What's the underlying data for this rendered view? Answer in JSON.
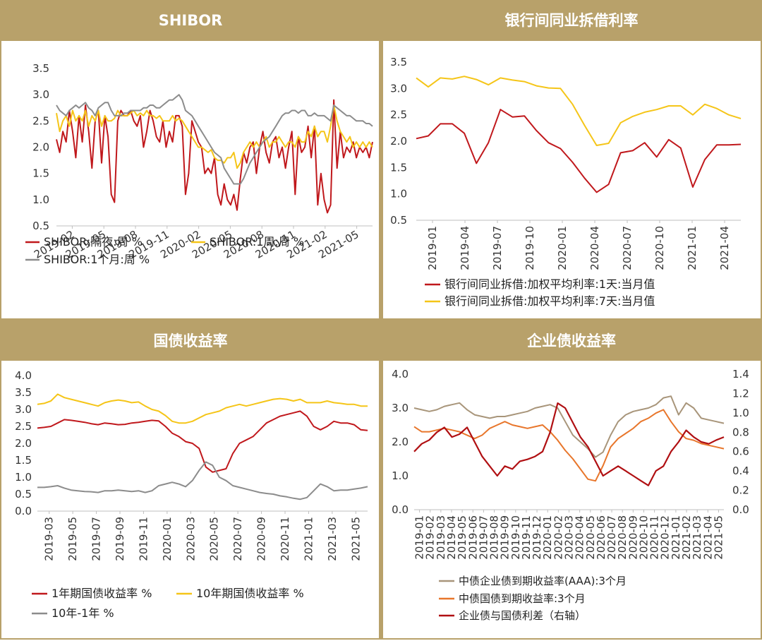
{
  "panels": [
    {
      "title": "SHIBOR",
      "chart_data": {
        "type": "line",
        "x_ticks": [
          "2019-02",
          "2019-05",
          "2019-08",
          "2019-11",
          "2020-02",
          "2020-05",
          "2020-08",
          "2020-11",
          "2021-02",
          "2021-05"
        ],
        "y_ticks": [
          "0.5",
          "1.0",
          "1.5",
          "2.0",
          "2.5",
          "3.0",
          "3.5"
        ],
        "ylim": [
          0.5,
          3.5
        ],
        "grid": false,
        "legend_position": "bottom",
        "series": [
          {
            "name": "SHIBOR:隔夜:周 %",
            "color": "#c0181c",
            "values": [
              2.15,
              1.9,
              2.3,
              2.1,
              2.7,
              2.3,
              1.8,
              2.6,
              2.1,
              2.8,
              2.3,
              1.6,
              2.5,
              2.7,
              1.7,
              2.6,
              2.2,
              1.1,
              0.95,
              2.5,
              2.7,
              2.6,
              2.6,
              2.7,
              2.5,
              2.4,
              2.6,
              2.0,
              2.3,
              2.7,
              2.5,
              2.2,
              2.1,
              2.5,
              2.0,
              2.3,
              2.1,
              2.6,
              2.6,
              2.4,
              1.1,
              1.5,
              2.5,
              2.3,
              2.1,
              2.0,
              1.5,
              1.6,
              1.5,
              1.8,
              1.1,
              0.9,
              1.3,
              1.0,
              0.9,
              1.1,
              0.8,
              1.4,
              1.9,
              1.7,
              2.0,
              2.1,
              1.5,
              2.0,
              2.3,
              1.9,
              1.7,
              2.1,
              2.2,
              1.8,
              2.0,
              1.6,
              2.0,
              2.3,
              1.1,
              2.2,
              1.9,
              2.0,
              2.4,
              1.8,
              2.4,
              0.9,
              1.5,
              1.0,
              0.75,
              0.9,
              2.9,
              1.6,
              2.3,
              1.8,
              2.0,
              1.9,
              2.1,
              1.8,
              2.0,
              1.9,
              2.0,
              1.8,
              2.1
            ]
          },
          {
            "name": "SHIBOR:1周:周 %",
            "color": "#f5c518",
            "values": [
              2.65,
              2.3,
              2.5,
              2.6,
              2.4,
              2.7,
              2.5,
              2.6,
              2.5,
              2.7,
              2.4,
              2.6,
              2.5,
              2.7,
              2.4,
              2.6,
              2.5,
              2.5,
              2.55,
              2.7,
              2.6,
              2.6,
              2.6,
              2.65,
              2.7,
              2.6,
              2.65,
              2.6,
              2.7,
              2.6,
              2.6,
              2.55,
              2.6,
              2.5,
              2.5,
              2.5,
              2.6,
              2.5,
              2.55,
              2.5,
              2.4,
              2.3,
              2.2,
              2.1,
              2.0,
              2.0,
              1.95,
              1.9,
              1.95,
              1.8,
              1.75,
              1.75,
              1.7,
              1.8,
              1.8,
              1.9,
              1.6,
              1.7,
              1.9,
              2.0,
              2.1,
              2.0,
              2.1,
              2.0,
              2.1,
              2.2,
              2.0,
              2.1,
              2.1,
              2.2,
              2.1,
              2.0,
              2.1,
              2.1,
              2.0,
              2.2,
              2.1,
              2.1,
              2.3,
              2.2,
              2.4,
              2.2,
              2.3,
              2.3,
              2.1,
              2.4,
              2.8,
              2.5,
              2.3,
              2.2,
              2.1,
              2.2,
              2.0,
              2.1,
              2.0,
              2.1,
              2.0,
              2.1,
              2.0
            ]
          },
          {
            "name": "SHIBOR:1个月:周 %",
            "color": "#8c8c8c",
            "values": [
              2.8,
              2.7,
              2.65,
              2.6,
              2.7,
              2.75,
              2.8,
              2.75,
              2.8,
              2.85,
              2.75,
              2.7,
              2.6,
              2.75,
              2.8,
              2.85,
              2.85,
              2.7,
              2.6,
              2.6,
              2.6,
              2.65,
              2.65,
              2.7,
              2.7,
              2.7,
              2.7,
              2.75,
              2.75,
              2.8,
              2.8,
              2.75,
              2.75,
              2.8,
              2.85,
              2.9,
              2.9,
              2.95,
              3.0,
              2.9,
              2.7,
              2.65,
              2.6,
              2.5,
              2.4,
              2.3,
              2.2,
              2.1,
              2.0,
              1.9,
              1.85,
              1.8,
              1.6,
              1.5,
              1.4,
              1.3,
              1.3,
              1.3,
              1.4,
              1.55,
              1.7,
              1.8,
              1.9,
              2.0,
              2.1,
              2.15,
              2.2,
              2.3,
              2.4,
              2.5,
              2.6,
              2.65,
              2.65,
              2.7,
              2.7,
              2.65,
              2.7,
              2.7,
              2.6,
              2.6,
              2.65,
              2.6,
              2.6,
              2.6,
              2.55,
              2.5,
              2.8,
              2.75,
              2.7,
              2.65,
              2.6,
              2.6,
              2.55,
              2.5,
              2.5,
              2.5,
              2.45,
              2.45,
              2.4
            ]
          }
        ]
      }
    },
    {
      "title": "银行间同业拆借利率",
      "chart_data": {
        "type": "line",
        "x_ticks": [
          "2019-01",
          "2019-04",
          "2019-07",
          "2019-10",
          "2020-01",
          "2020-04",
          "2020-07",
          "2020-10",
          "2021-01",
          "2021-04"
        ],
        "y_ticks": [
          "0.5",
          "1.0",
          "1.5",
          "2.0",
          "2.5",
          "3.0",
          "3.5"
        ],
        "ylim": [
          0.5,
          3.5
        ],
        "grid": false,
        "legend_position": "bottom",
        "series": [
          {
            "name": "银行间同业拆借:加权平均利率:1天:当月值",
            "color": "#c0181c",
            "values": [
              2.05,
              2.1,
              2.33,
              2.33,
              2.15,
              1.58,
              1.97,
              2.6,
              2.46,
              2.48,
              2.2,
              1.97,
              1.86,
              1.6,
              1.3,
              1.03,
              1.18,
              1.78,
              1.82,
              1.97,
              1.7,
              2.03,
              1.87,
              1.13,
              1.65,
              1.93,
              1.93,
              1.94
            ]
          },
          {
            "name": "银行间同业拆借:加权平均利率:7天:当月值",
            "color": "#f5c518",
            "values": [
              3.2,
              3.03,
              3.2,
              3.18,
              3.23,
              3.17,
              3.07,
              3.2,
              3.16,
              3.13,
              3.05,
              3.01,
              3.0,
              2.7,
              2.3,
              1.92,
              1.96,
              2.35,
              2.47,
              2.55,
              2.6,
              2.67,
              2.67,
              2.5,
              2.7,
              2.62,
              2.5,
              2.43
            ]
          }
        ]
      }
    },
    {
      "title": "国债收益率",
      "chart_data": {
        "type": "line",
        "x_ticks": [
          "2019-03",
          "2019-05",
          "2019-07",
          "2019-09",
          "2019-11",
          "2020-01",
          "2020-03",
          "2020-05",
          "2020-07",
          "2020-09",
          "2020-11",
          "2021-01",
          "2021-03",
          "2021-05"
        ],
        "y_ticks": [
          "0.0",
          "0.5",
          "1.0",
          "1.5",
          "2.0",
          "2.5",
          "3.0",
          "3.5",
          "4.0"
        ],
        "ylim": [
          0.0,
          4.0
        ],
        "grid": false,
        "legend_position": "bottom",
        "series": [
          {
            "name": "1年期国债收益率 %",
            "color": "#c0181c",
            "values": [
              2.45,
              2.47,
              2.5,
              2.6,
              2.7,
              2.68,
              2.65,
              2.62,
              2.58,
              2.55,
              2.6,
              2.58,
              2.55,
              2.56,
              2.6,
              2.62,
              2.65,
              2.68,
              2.66,
              2.5,
              2.3,
              2.2,
              2.05,
              2.0,
              1.85,
              1.3,
              1.15,
              1.2,
              1.25,
              1.7,
              2.0,
              2.1,
              2.2,
              2.4,
              2.6,
              2.7,
              2.8,
              2.85,
              2.9,
              2.95,
              2.8,
              2.5,
              2.4,
              2.5,
              2.65,
              2.6,
              2.6,
              2.55,
              2.4,
              2.38
            ]
          },
          {
            "name": "10年期国债收益率 %",
            "color": "#f5c518",
            "values": [
              3.15,
              3.18,
              3.25,
              3.45,
              3.35,
              3.3,
              3.25,
              3.2,
              3.15,
              3.1,
              3.2,
              3.25,
              3.28,
              3.25,
              3.2,
              3.22,
              3.1,
              3.0,
              2.95,
              2.82,
              2.65,
              2.6,
              2.6,
              2.65,
              2.75,
              2.85,
              2.9,
              2.95,
              3.05,
              3.1,
              3.15,
              3.1,
              3.15,
              3.2,
              3.25,
              3.3,
              3.32,
              3.3,
              3.25,
              3.3,
              3.2,
              3.2,
              3.2,
              3.25,
              3.2,
              3.18,
              3.15,
              3.15,
              3.1,
              3.1
            ]
          },
          {
            "name": "10年-1年 %",
            "color": "#8c8c8c",
            "values": [
              0.7,
              0.7,
              0.72,
              0.75,
              0.68,
              0.62,
              0.6,
              0.58,
              0.57,
              0.55,
              0.6,
              0.6,
              0.62,
              0.6,
              0.58,
              0.6,
              0.55,
              0.6,
              0.75,
              0.8,
              0.85,
              0.8,
              0.72,
              0.9,
              1.2,
              1.45,
              1.35,
              1.0,
              0.9,
              0.75,
              0.7,
              0.65,
              0.6,
              0.55,
              0.52,
              0.5,
              0.45,
              0.42,
              0.38,
              0.35,
              0.4,
              0.6,
              0.8,
              0.72,
              0.6,
              0.62,
              0.62,
              0.65,
              0.68,
              0.72
            ]
          }
        ]
      }
    },
    {
      "title": "企业债收益率",
      "chart_data": {
        "type": "line",
        "x_ticks": [
          "2019-01",
          "2019-02",
          "2019-03",
          "2019-04",
          "2019-05",
          "2019-06",
          "2019-07",
          "2019-08",
          "2019-09",
          "2019-10",
          "2019-11",
          "2019-12",
          "2020-01",
          "2020-02",
          "2020-03",
          "2020-04",
          "2020-05",
          "2020-06",
          "2020-07",
          "2020-08",
          "2020-09",
          "2020-10",
          "2020-11",
          "2020-12",
          "2021-01",
          "2021-02",
          "2021-03",
          "2021-04",
          "2021-05"
        ],
        "y_ticks": [
          "0.0",
          "1.0",
          "2.0",
          "3.0",
          "4.0"
        ],
        "y2_ticks": [
          "0.0",
          "0.2",
          "0.4",
          "0.6",
          "0.8",
          "1.0",
          "1.2",
          "1.4"
        ],
        "ylim": [
          0.0,
          4.0
        ],
        "y2lim": [
          0.0,
          1.4
        ],
        "grid": false,
        "legend_position": "bottom",
        "series": [
          {
            "name": "中债企业债到期收益率(AAA):3个月",
            "color": "#a8957a",
            "axis": "left",
            "values": [
              3.0,
              2.95,
              2.9,
              2.95,
              3.05,
              3.1,
              3.15,
              2.95,
              2.8,
              2.75,
              2.7,
              2.75,
              2.75,
              2.8,
              2.85,
              2.9,
              3.0,
              3.05,
              3.1,
              3.0,
              2.6,
              2.2,
              2.0,
              1.8,
              1.55,
              1.7,
              2.2,
              2.6,
              2.8,
              2.9,
              2.95,
              3.0,
              3.1,
              3.3,
              3.35,
              2.8,
              3.15,
              3.0,
              2.7,
              2.65,
              2.6,
              2.55
            ]
          },
          {
            "name": "中债国债到期收益率:3个月",
            "color": "#e8762b",
            "axis": "left",
            "values": [
              2.45,
              2.3,
              2.3,
              2.35,
              2.4,
              2.35,
              2.3,
              2.2,
              2.1,
              2.2,
              2.4,
              2.5,
              2.6,
              2.5,
              2.45,
              2.4,
              2.45,
              2.5,
              2.3,
              2.05,
              1.75,
              1.5,
              1.2,
              0.9,
              0.85,
              1.3,
              1.85,
              2.1,
              2.25,
              2.4,
              2.6,
              2.7,
              2.85,
              2.95,
              2.6,
              2.3,
              2.1,
              2.05,
              1.95,
              1.9,
              1.85,
              1.8
            ]
          },
          {
            "name": "企业债与国债利差（右轴）",
            "color": "#b00f12",
            "axis": "right",
            "values": [
              0.6,
              0.68,
              0.72,
              0.8,
              0.85,
              0.75,
              0.78,
              0.85,
              0.7,
              0.55,
              0.45,
              0.35,
              0.45,
              0.42,
              0.5,
              0.52,
              0.55,
              0.6,
              0.8,
              1.1,
              1.05,
              0.9,
              0.75,
              0.65,
              0.5,
              0.35,
              0.4,
              0.45,
              0.4,
              0.35,
              0.3,
              0.25,
              0.4,
              0.45,
              0.6,
              0.7,
              0.82,
              0.75,
              0.7,
              0.68,
              0.72,
              0.75
            ]
          }
        ]
      }
    }
  ]
}
